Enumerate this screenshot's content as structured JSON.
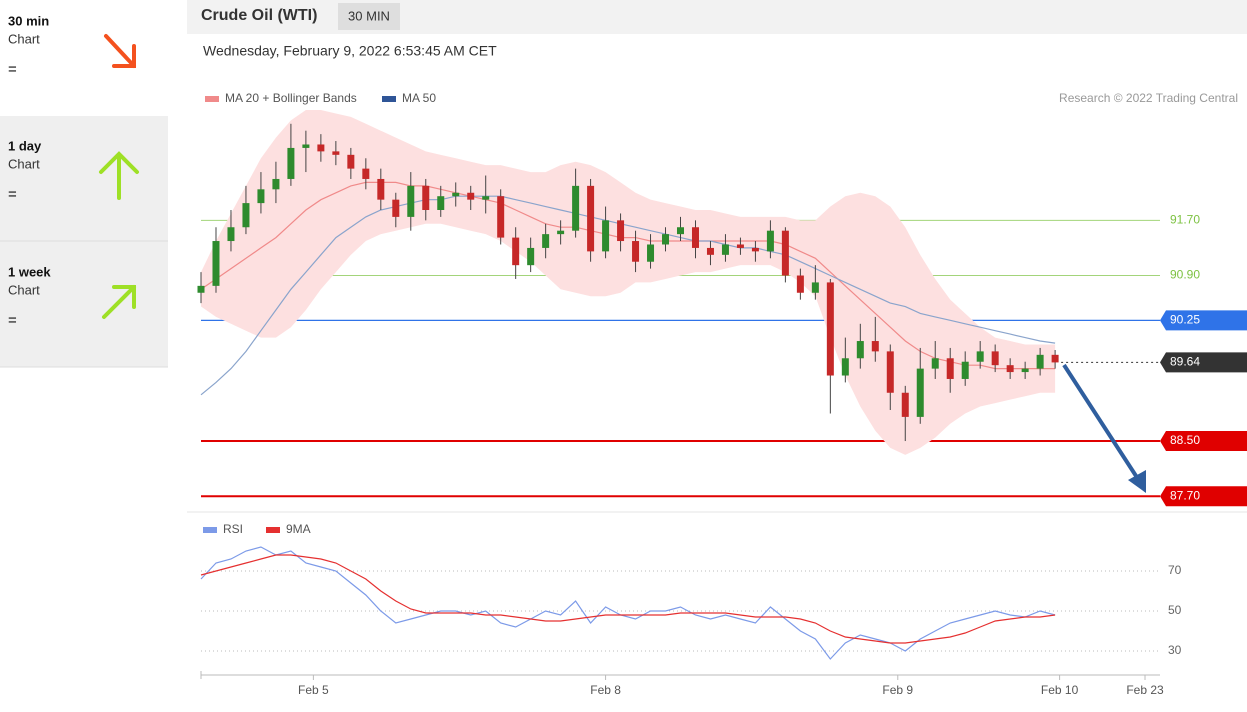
{
  "sidebar": [
    {
      "period": "30 min",
      "label": "Chart",
      "value": "="
    },
    {
      "period": "1 day",
      "label": "Chart",
      "value": "="
    },
    {
      "period": "1 week",
      "label": "Chart",
      "value": "="
    }
  ],
  "header": {
    "title": "Crude Oil (WTI)",
    "interval": "30 MIN",
    "timestamp": "Wednesday, February 9, 2022 6:53:45 AM CET"
  },
  "chart_data": [
    {
      "type": "candlestick",
      "credit": "Research © 2022 Trading Central",
      "up_color": "#2e8b2e",
      "down_color": "#c62828",
      "xlim": [
        0,
        64
      ],
      "ylim": [
        87.5,
        93.3
      ],
      "open": [
        90.65,
        90.75,
        91.4,
        91.6,
        91.95,
        92.15,
        92.3,
        92.75,
        92.8,
        92.7,
        92.65,
        92.45,
        92.3,
        92.0,
        91.75,
        92.2,
        91.85,
        92.05,
        92.1,
        92.0,
        92.05,
        91.45,
        91.05,
        91.3,
        91.5,
        91.55,
        92.2,
        91.25,
        91.7,
        91.4,
        91.1,
        91.35,
        91.5,
        91.6,
        91.3,
        91.2,
        91.35,
        91.3,
        91.25,
        91.55,
        90.9,
        90.65,
        90.8,
        89.45,
        89.7,
        89.95,
        89.8,
        89.2,
        88.85,
        89.55,
        89.7,
        89.4,
        89.65,
        89.8,
        89.6,
        89.5,
        89.55,
        89.75
      ],
      "high": [
        90.95,
        91.6,
        91.85,
        92.2,
        92.4,
        92.55,
        93.1,
        93.0,
        92.95,
        92.85,
        92.75,
        92.6,
        92.45,
        92.1,
        92.4,
        92.3,
        92.2,
        92.25,
        92.2,
        92.35,
        92.15,
        91.6,
        91.45,
        91.65,
        91.7,
        92.45,
        92.3,
        91.9,
        91.8,
        91.55,
        91.5,
        91.6,
        91.75,
        91.7,
        91.4,
        91.5,
        91.45,
        91.4,
        91.7,
        91.6,
        91.0,
        91.05,
        90.85,
        90.0,
        90.2,
        90.3,
        89.9,
        89.3,
        89.85,
        89.95,
        89.85,
        89.8,
        89.95,
        89.9,
        89.7,
        89.65,
        89.85,
        89.82
      ],
      "low": [
        90.5,
        90.65,
        91.25,
        91.5,
        91.8,
        91.95,
        92.2,
        92.4,
        92.55,
        92.5,
        92.3,
        92.15,
        91.85,
        91.6,
        91.55,
        91.7,
        91.75,
        91.9,
        91.85,
        91.8,
        91.35,
        90.85,
        90.95,
        91.15,
        91.35,
        91.45,
        91.1,
        91.15,
        91.25,
        90.95,
        91.0,
        91.25,
        91.4,
        91.15,
        91.05,
        91.1,
        91.2,
        91.1,
        91.15,
        90.8,
        90.55,
        90.55,
        88.9,
        89.35,
        89.55,
        89.65,
        88.95,
        88.5,
        88.75,
        89.4,
        89.2,
        89.3,
        89.55,
        89.5,
        89.4,
        89.4,
        89.45,
        89.55
      ],
      "close": [
        90.75,
        91.4,
        91.6,
        91.95,
        92.15,
        92.3,
        92.75,
        92.8,
        92.7,
        92.65,
        92.45,
        92.3,
        92.0,
        91.75,
        92.2,
        91.85,
        92.05,
        92.1,
        92.0,
        92.05,
        91.45,
        91.05,
        91.3,
        91.5,
        91.55,
        92.2,
        91.25,
        91.7,
        91.4,
        91.1,
        91.35,
        91.5,
        91.6,
        91.3,
        91.2,
        91.35,
        91.3,
        91.25,
        91.55,
        90.9,
        90.65,
        90.8,
        89.45,
        89.7,
        89.95,
        89.8,
        89.2,
        88.85,
        89.55,
        89.7,
        89.4,
        89.65,
        89.8,
        89.6,
        89.5,
        89.55,
        89.75,
        89.64
      ],
      "series": [
        {
          "name": "MA 20 + Bollinger Bands",
          "color": "#f08a8a",
          "band_color": "#fde0e0",
          "values": [
            90.7,
            90.85,
            91.0,
            91.15,
            91.3,
            91.45,
            91.65,
            91.85,
            92.0,
            92.1,
            92.2,
            92.25,
            92.25,
            92.25,
            92.2,
            92.2,
            92.15,
            92.1,
            92.05,
            92.0,
            91.95,
            91.85,
            91.75,
            91.65,
            91.6,
            91.6,
            91.55,
            91.5,
            91.45,
            91.45,
            91.4,
            91.4,
            91.4,
            91.4,
            91.4,
            91.4,
            91.4,
            91.4,
            91.4,
            91.35,
            91.25,
            91.15,
            90.95,
            90.75,
            90.55,
            90.35,
            90.15,
            89.95,
            89.8,
            89.7,
            89.65,
            89.6,
            89.6,
            89.55,
            89.55,
            89.55,
            89.55,
            89.55
          ],
          "upper": [
            90.95,
            91.4,
            91.8,
            92.2,
            92.6,
            92.9,
            93.15,
            93.3,
            93.3,
            93.25,
            93.2,
            93.1,
            93.0,
            92.9,
            92.8,
            92.7,
            92.65,
            92.6,
            92.55,
            92.5,
            92.5,
            92.45,
            92.4,
            92.4,
            92.5,
            92.55,
            92.5,
            92.4,
            92.25,
            92.1,
            92.0,
            91.95,
            91.9,
            91.85,
            91.85,
            91.8,
            91.75,
            91.75,
            91.75,
            91.75,
            91.7,
            91.7,
            91.9,
            92.05,
            92.1,
            92.05,
            91.9,
            91.6,
            91.2,
            90.85,
            90.55,
            90.35,
            90.15,
            90.0,
            89.95,
            89.9,
            89.9,
            89.9
          ],
          "lower": [
            90.45,
            90.3,
            90.2,
            90.1,
            90.0,
            90.0,
            90.15,
            90.4,
            90.7,
            90.95,
            91.2,
            91.4,
            91.5,
            91.55,
            91.6,
            91.65,
            91.65,
            91.6,
            91.55,
            91.5,
            91.4,
            91.25,
            91.1,
            90.9,
            90.7,
            90.65,
            90.6,
            90.6,
            90.65,
            90.8,
            90.8,
            90.85,
            90.9,
            90.95,
            90.95,
            91.0,
            91.05,
            91.05,
            91.05,
            90.95,
            90.8,
            90.6,
            90.0,
            89.45,
            89.0,
            88.65,
            88.4,
            88.3,
            88.4,
            88.55,
            88.75,
            88.9,
            89.0,
            89.05,
            89.1,
            89.15,
            89.2,
            89.2
          ]
        },
        {
          "name": "MA 50",
          "color": "#8aa4cc",
          "legend_color": "#2f5597",
          "values": [
            89.17,
            89.35,
            89.55,
            89.8,
            90.1,
            90.4,
            90.7,
            90.95,
            91.2,
            91.45,
            91.6,
            91.75,
            91.85,
            91.9,
            91.95,
            92.0,
            92.0,
            92.05,
            92.05,
            92.05,
            92.05,
            92.0,
            91.95,
            91.9,
            91.85,
            91.8,
            91.75,
            91.7,
            91.65,
            91.6,
            91.55,
            91.5,
            91.45,
            91.4,
            91.4,
            91.35,
            91.3,
            91.3,
            91.25,
            91.2,
            91.1,
            91.0,
            90.9,
            90.8,
            90.7,
            90.6,
            90.5,
            90.45,
            90.35,
            90.3,
            90.25,
            90.2,
            90.15,
            90.1,
            90.05,
            90.0,
            89.95,
            89.92
          ]
        }
      ],
      "levels": [
        {
          "value": 91.7,
          "label": "91.70",
          "color": "#7dc242",
          "boxed": false
        },
        {
          "value": 90.9,
          "label": "90.90",
          "color": "#7dc242",
          "boxed": false
        },
        {
          "value": 90.25,
          "label": "90.25",
          "color": "#2f73e8",
          "boxed": true
        },
        {
          "value": 89.64,
          "label": "89.64",
          "color": "#333333",
          "boxed": true,
          "dotted": true
        },
        {
          "value": 88.5,
          "label": "88.50",
          "color": "#e00000",
          "boxed": true
        },
        {
          "value": 87.7,
          "label": "87.70",
          "color": "#e00000",
          "boxed": true
        }
      ]
    },
    {
      "type": "line",
      "xlim": [
        0,
        64
      ],
      "ylim": [
        20,
        95
      ],
      "yticks": [
        70,
        50,
        30
      ],
      "xticks": [
        {
          "value": 7.5,
          "label": "Feb 5"
        },
        {
          "value": 27,
          "label": "Feb 8"
        },
        {
          "value": 46.5,
          "label": "Feb 9"
        },
        {
          "value": 57.3,
          "label": "Feb 10"
        },
        {
          "value": 63,
          "label": "Feb 23"
        }
      ],
      "series": [
        {
          "name": "RSI",
          "color": "#7c9ae8",
          "values": [
            66,
            74,
            76,
            80,
            82,
            78,
            80,
            74,
            72,
            70,
            64,
            58,
            50,
            44,
            46,
            48,
            50,
            50,
            48,
            50,
            44,
            42,
            46,
            50,
            48,
            55,
            44,
            52,
            48,
            46,
            50,
            50,
            52,
            48,
            46,
            48,
            46,
            44,
            52,
            46,
            40,
            36,
            26,
            34,
            38,
            36,
            34,
            30,
            36,
            40,
            44,
            46,
            48,
            50,
            48,
            47,
            50,
            48
          ]
        },
        {
          "name": "9MA",
          "color": "#e53030",
          "values": [
            68,
            70,
            72,
            74,
            76,
            78,
            78,
            77,
            76,
            74,
            70,
            66,
            60,
            55,
            51,
            49,
            49,
            49,
            49,
            48,
            48,
            47,
            46,
            45,
            45,
            46,
            47,
            48,
            48,
            48,
            48,
            48,
            49,
            49,
            49,
            49,
            48,
            47,
            47,
            47,
            46,
            44,
            40,
            37,
            36,
            35,
            34,
            34,
            35,
            36,
            37,
            39,
            42,
            45,
            46,
            47,
            47,
            48
          ]
        }
      ]
    }
  ]
}
